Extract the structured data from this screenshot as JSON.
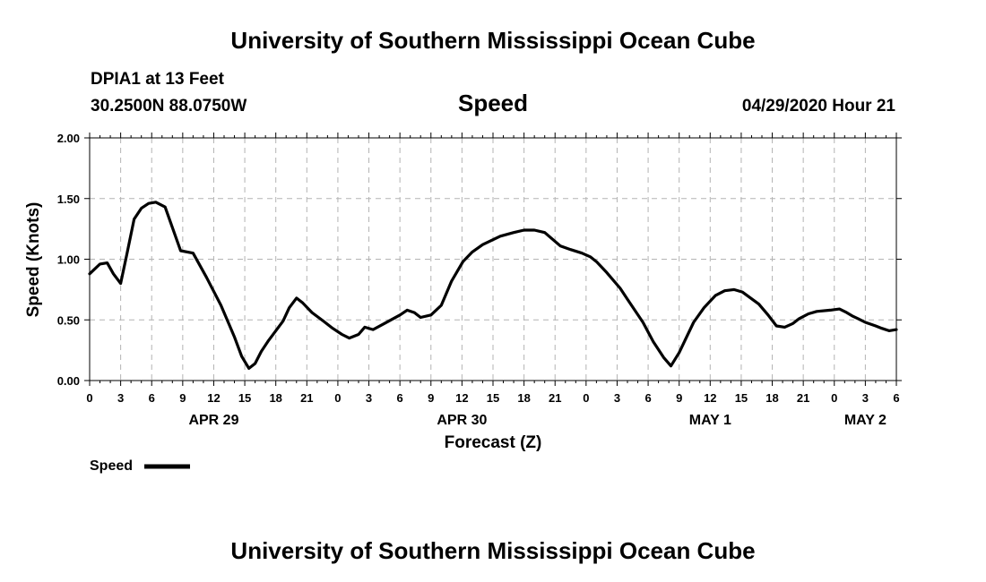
{
  "page": {
    "title_top": "University of Southern Mississippi Ocean Cube",
    "title_bottom": "University of Southern Mississippi Ocean Cube",
    "station": "DPIA1 at 13 Feet",
    "coords": "30.2500N 88.0750W",
    "variable": "Speed",
    "timestamp": "04/29/2020 Hour 21"
  },
  "chart_data": {
    "type": "line",
    "title": "Speed",
    "xlabel": "Forecast (Z)",
    "ylabel": "Speed (Knots)",
    "xlim": [
      0,
      78
    ],
    "ylim": [
      0,
      2
    ],
    "grid": true,
    "legend": "bottom-left",
    "y_ticks": [
      0,
      0.5,
      1,
      1.5,
      2
    ],
    "y_tick_labels": [
      "0.00",
      "0.50",
      "1.00",
      "1.50",
      "2.00"
    ],
    "x_ticks": [
      0,
      3,
      6,
      9,
      12,
      15,
      18,
      21,
      24,
      27,
      30,
      33,
      36,
      39,
      42,
      45,
      48,
      51,
      54,
      57,
      60,
      63,
      66,
      69,
      72,
      75,
      78
    ],
    "x_tick_labels": [
      "0",
      "3",
      "6",
      "9",
      "12",
      "15",
      "18",
      "21",
      "0",
      "3",
      "6",
      "9",
      "12",
      "15",
      "18",
      "21",
      "0",
      "3",
      "6",
      "9",
      "12",
      "15",
      "18",
      "21",
      "0",
      "3",
      "6"
    ],
    "date_labels": [
      {
        "hour": 12,
        "label": "APR 29"
      },
      {
        "hour": 36,
        "label": "APR 30"
      },
      {
        "hour": 60,
        "label": "MAY 1"
      },
      {
        "hour": 75,
        "label": "MAY 2"
      }
    ],
    "series": [
      {
        "name": "Speed",
        "color": "#000000",
        "x": [
          0,
          1,
          1.7,
          2.3,
          3,
          3.6,
          4.3,
          5,
          5.7,
          6.4,
          7.3,
          8.8,
          10,
          11.3,
          12.7,
          14,
          14.7,
          15.4,
          16,
          16.6,
          17.3,
          18.7,
          19.3,
          20,
          20.6,
          21.5,
          22.6,
          23.5,
          24.4,
          25.1,
          26,
          26.6,
          27.4,
          28.5,
          30,
          30.7,
          31.4,
          32,
          33,
          34,
          35,
          36.1,
          37,
          38,
          39.7,
          41,
          42,
          42.5,
          43,
          44,
          45.5,
          46.5,
          47.6,
          48.4,
          49,
          50,
          51.3,
          52,
          53.5,
          54.5,
          55.5,
          56.2,
          57,
          58.4,
          59.4,
          60.5,
          61.4,
          62.3,
          63.1,
          64.7,
          65.6,
          66.4,
          67.2,
          68,
          68.6,
          69.5,
          70.3,
          71.6,
          72.5,
          73.2,
          73.8,
          74.3,
          75,
          76,
          76.6,
          77.3,
          78
        ],
        "values": [
          0.88,
          0.96,
          0.97,
          0.88,
          0.8,
          1.04,
          1.33,
          1.42,
          1.46,
          1.47,
          1.43,
          1.07,
          1.05,
          0.85,
          0.62,
          0.36,
          0.2,
          0.1,
          0.14,
          0.24,
          0.33,
          0.49,
          0.6,
          0.68,
          0.64,
          0.56,
          0.49,
          0.43,
          0.38,
          0.35,
          0.38,
          0.44,
          0.42,
          0.47,
          0.54,
          0.58,
          0.56,
          0.52,
          0.54,
          0.62,
          0.82,
          0.98,
          1.06,
          1.12,
          1.19,
          1.22,
          1.24,
          1.24,
          1.24,
          1.22,
          1.11,
          1.08,
          1.05,
          1.02,
          0.98,
          0.89,
          0.76,
          0.67,
          0.48,
          0.32,
          0.19,
          0.12,
          0.23,
          0.48,
          0.6,
          0.7,
          0.74,
          0.75,
          0.73,
          0.63,
          0.54,
          0.45,
          0.44,
          0.47,
          0.51,
          0.55,
          0.57,
          0.58,
          0.59,
          0.56,
          0.53,
          0.51,
          0.48,
          0.45,
          0.43,
          0.41,
          0.42
        ]
      }
    ]
  }
}
